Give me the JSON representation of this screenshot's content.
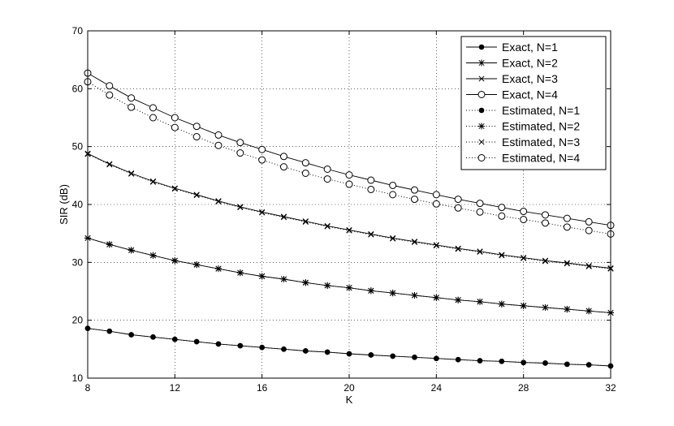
{
  "chart_data": {
    "type": "line",
    "title": "",
    "xlabel": "K",
    "ylabel": "SIR (dB)",
    "xlim": [
      8,
      32
    ],
    "ylim": [
      10,
      70
    ],
    "xticks": [
      8,
      12,
      16,
      20,
      24,
      28,
      32
    ],
    "yticks": [
      10,
      20,
      30,
      40,
      50,
      60,
      70
    ],
    "grid": true,
    "legend_position": "top-right",
    "x": [
      8,
      9,
      10,
      11,
      12,
      13,
      14,
      15,
      16,
      17,
      18,
      19,
      20,
      21,
      22,
      23,
      24,
      25,
      26,
      27,
      28,
      29,
      30,
      31,
      32
    ],
    "series": [
      {
        "name": "Exact, N=1",
        "line": "solid",
        "marker": "dot",
        "values": [
          18.6,
          18.1,
          17.5,
          17.1,
          16.7,
          16.3,
          15.9,
          15.6,
          15.3,
          15.0,
          14.7,
          14.5,
          14.2,
          14.0,
          13.8,
          13.6,
          13.4,
          13.2,
          13.0,
          12.9,
          12.7,
          12.6,
          12.4,
          12.3,
          12.1
        ]
      },
      {
        "name": "Exact, N=2",
        "line": "solid",
        "marker": "star",
        "values": [
          34.2,
          33.1,
          32.1,
          31.2,
          30.3,
          29.6,
          28.9,
          28.2,
          27.6,
          27.1,
          26.5,
          26.0,
          25.6,
          25.1,
          24.7,
          24.3,
          23.9,
          23.5,
          23.2,
          22.8,
          22.5,
          22.2,
          21.9,
          21.6,
          21.3
        ]
      },
      {
        "name": "Exact, N=3",
        "line": "solid",
        "marker": "x",
        "values": [
          48.8,
          47.0,
          45.4,
          44.0,
          42.8,
          41.7,
          40.6,
          39.6,
          38.7,
          37.9,
          37.1,
          36.3,
          35.6,
          34.9,
          34.2,
          33.6,
          33.0,
          32.4,
          31.9,
          31.3,
          30.8,
          30.3,
          29.9,
          29.4,
          29.0
        ]
      },
      {
        "name": "Exact, N=4",
        "line": "solid",
        "marker": "circle",
        "values": [
          62.7,
          60.5,
          58.4,
          56.7,
          55.0,
          53.5,
          52.0,
          50.7,
          49.5,
          48.3,
          47.2,
          46.1,
          45.1,
          44.2,
          43.3,
          42.5,
          41.7,
          40.9,
          40.2,
          39.5,
          38.8,
          38.2,
          37.6,
          37.0,
          36.4
        ]
      },
      {
        "name": "Estimated, N=1",
        "line": "dotted",
        "marker": "dot",
        "values": [
          18.6,
          18.1,
          17.5,
          17.1,
          16.7,
          16.3,
          15.9,
          15.6,
          15.3,
          15.0,
          14.7,
          14.5,
          14.2,
          14.0,
          13.8,
          13.6,
          13.4,
          13.2,
          13.0,
          12.9,
          12.7,
          12.6,
          12.4,
          12.3,
          12.1
        ]
      },
      {
        "name": "Estimated, N=2",
        "line": "dotted",
        "marker": "star",
        "values": [
          34.2,
          33.1,
          32.1,
          31.2,
          30.3,
          29.6,
          28.9,
          28.2,
          27.6,
          27.1,
          26.5,
          26.0,
          25.6,
          25.1,
          24.7,
          24.3,
          23.9,
          23.5,
          23.2,
          22.8,
          22.5,
          22.2,
          21.9,
          21.6,
          21.3
        ]
      },
      {
        "name": "Estimated, N=3",
        "line": "dotted",
        "marker": "x",
        "values": [
          48.7,
          46.9,
          45.3,
          43.9,
          42.7,
          41.6,
          40.5,
          39.5,
          38.6,
          37.8,
          37.0,
          36.2,
          35.5,
          34.8,
          34.1,
          33.5,
          32.9,
          32.3,
          31.8,
          31.2,
          30.7,
          30.2,
          29.8,
          29.3,
          28.9
        ]
      },
      {
        "name": "Estimated, N=4",
        "line": "dotted",
        "marker": "circle",
        "values": [
          61.2,
          58.9,
          56.8,
          55.0,
          53.3,
          51.7,
          50.2,
          48.9,
          47.7,
          46.5,
          45.4,
          44.4,
          43.5,
          42.6,
          41.7,
          40.9,
          40.1,
          39.4,
          38.7,
          38.0,
          37.4,
          36.8,
          36.1,
          35.5,
          34.9
        ]
      }
    ]
  }
}
